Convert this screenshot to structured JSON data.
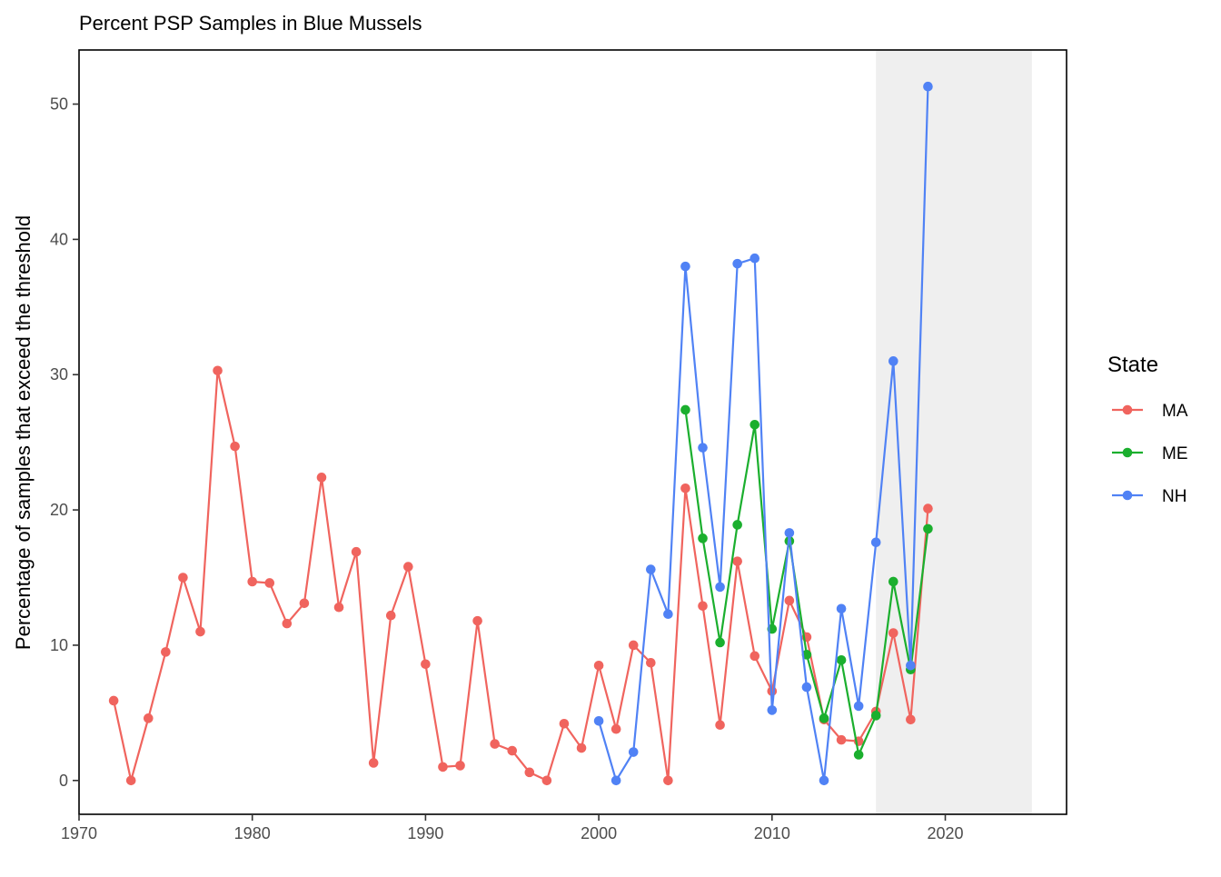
{
  "chart_data": {
    "type": "line",
    "title": "Percent PSP Samples in Blue Mussels",
    "xlabel": "",
    "ylabel": "Percentage of samples that exceed the threshold",
    "xlim": [
      1970,
      2027
    ],
    "ylim": [
      -2.5,
      54
    ],
    "x_ticks": [
      1970,
      1980,
      1990,
      2000,
      2010,
      2020
    ],
    "y_ticks": [
      0,
      10,
      20,
      30,
      40,
      50
    ],
    "x_tick_labels": [
      "1970",
      "1980",
      "1990",
      "2000",
      "2010",
      "2020"
    ],
    "y_tick_labels": [
      "0",
      "10",
      "20",
      "30",
      "40",
      "50"
    ],
    "shaded_region": {
      "x_start": 2016,
      "x_end": 2025,
      "color": "#efefef"
    },
    "grid": false,
    "legend": {
      "title": "State",
      "position": "right"
    },
    "series": [
      {
        "name": "MA",
        "color": "#F0645E",
        "points": [
          [
            1972,
            5.9
          ],
          [
            1973,
            0
          ],
          [
            1974,
            4.6
          ],
          [
            1975,
            9.5
          ],
          [
            1976,
            15.0
          ],
          [
            1977,
            11.0
          ],
          [
            1978,
            30.3
          ],
          [
            1979,
            24.7
          ],
          [
            1980,
            14.7
          ],
          [
            1981,
            14.6
          ],
          [
            1982,
            11.6
          ],
          [
            1983,
            13.1
          ],
          [
            1984,
            22.4
          ],
          [
            1985,
            12.8
          ],
          [
            1986,
            16.9
          ],
          [
            1987,
            1.3
          ],
          [
            1988,
            12.2
          ],
          [
            1989,
            15.8
          ],
          [
            1990,
            8.6
          ],
          [
            1991,
            1.0
          ],
          [
            1992,
            1.1
          ],
          [
            1993,
            11.8
          ],
          [
            1994,
            2.7
          ],
          [
            1995,
            2.2
          ],
          [
            1996,
            0.6
          ],
          [
            1997,
            0
          ],
          [
            1998,
            4.2
          ],
          [
            1999,
            2.4
          ],
          [
            2000,
            8.5
          ],
          [
            2001,
            3.8
          ],
          [
            2002,
            10.0
          ],
          [
            2003,
            8.7
          ],
          [
            2004,
            0
          ],
          [
            2005,
            21.6
          ],
          [
            2006,
            12.9
          ],
          [
            2007,
            4.1
          ],
          [
            2008,
            16.2
          ],
          [
            2009,
            9.2
          ],
          [
            2010,
            6.6
          ],
          [
            2011,
            13.3
          ],
          [
            2012,
            10.6
          ],
          [
            2013,
            4.5
          ],
          [
            2014,
            3.0
          ],
          [
            2015,
            2.9
          ],
          [
            2016,
            5.1
          ],
          [
            2017,
            10.9
          ],
          [
            2018,
            4.5
          ],
          [
            2019,
            20.1
          ]
        ]
      },
      {
        "name": "ME",
        "color": "#1BAF2E",
        "points": [
          [
            2005,
            27.4
          ],
          [
            2006,
            17.9
          ],
          [
            2007,
            10.2
          ],
          [
            2008,
            18.9
          ],
          [
            2009,
            26.3
          ],
          [
            2010,
            11.2
          ],
          [
            2011,
            17.7
          ],
          [
            2012,
            9.3
          ],
          [
            2013,
            4.6
          ],
          [
            2014,
            8.9
          ],
          [
            2015,
            1.9
          ],
          [
            2016,
            4.8
          ],
          [
            2017,
            14.7
          ],
          [
            2018,
            8.2
          ],
          [
            2019,
            18.6
          ]
        ]
      },
      {
        "name": "NH",
        "color": "#5082F5",
        "points": [
          [
            2000,
            4.4
          ],
          [
            2001,
            0
          ],
          [
            2002,
            2.1
          ],
          [
            2003,
            15.6
          ],
          [
            2004,
            12.3
          ],
          [
            2005,
            38.0
          ],
          [
            2006,
            24.6
          ],
          [
            2007,
            14.3
          ],
          [
            2008,
            38.2
          ],
          [
            2009,
            38.6
          ],
          [
            2010,
            5.2
          ],
          [
            2011,
            18.3
          ],
          [
            2012,
            6.9
          ],
          [
            2013,
            0
          ],
          [
            2014,
            12.7
          ],
          [
            2015,
            5.5
          ],
          [
            2016,
            17.6
          ],
          [
            2017,
            31.0
          ],
          [
            2018,
            8.5
          ],
          [
            2019,
            51.3
          ]
        ]
      }
    ]
  }
}
